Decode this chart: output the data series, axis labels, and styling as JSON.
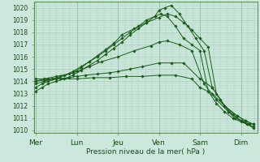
{
  "title": "Pression niveau de la mer( hPa )",
  "ylabel_ticks": [
    1010,
    1011,
    1012,
    1013,
    1014,
    1015,
    1016,
    1017,
    1018,
    1019,
    1020
  ],
  "ylim": [
    1009.8,
    1020.5
  ],
  "xlim": [
    -0.05,
    5.4
  ],
  "day_labels": [
    "Mer",
    "Lun",
    "Jeu",
    "Ven",
    "Sam",
    "Dim"
  ],
  "day_positions": [
    0,
    1,
    2,
    3,
    4,
    5
  ],
  "background_color": "#cce8dc",
  "grid_color": "#a8ccb8",
  "line_color": "#1a5c1a",
  "marker_color": "#1a5c1a",
  "series": [
    {
      "x": [
        0.0,
        0.15,
        0.3,
        0.5,
        0.7,
        0.9,
        1.1,
        1.3,
        1.5,
        1.7,
        1.9,
        2.1,
        2.3,
        2.5,
        2.7,
        2.9,
        3.0,
        3.15,
        3.3,
        3.5,
        3.7,
        3.9,
        4.1,
        4.3,
        4.5,
        4.7,
        4.85,
        5.0,
        5.15,
        5.3
      ],
      "y": [
        1013.2,
        1013.5,
        1013.8,
        1014.0,
        1014.2,
        1014.5,
        1014.9,
        1015.3,
        1015.7,
        1016.2,
        1016.7,
        1017.2,
        1017.8,
        1018.3,
        1018.8,
        1019.3,
        1019.8,
        1020.0,
        1020.2,
        1019.5,
        1018.5,
        1017.5,
        1016.5,
        1013.5,
        1012.5,
        1011.5,
        1011.0,
        1010.8,
        1010.5,
        1010.3
      ]
    },
    {
      "x": [
        0.0,
        0.15,
        0.3,
        0.5,
        0.7,
        0.9,
        1.1,
        1.3,
        1.5,
        1.7,
        1.9,
        2.1,
        2.3,
        2.5,
        2.7,
        2.9,
        3.05,
        3.2,
        3.4,
        3.6,
        3.8,
        4.0,
        4.2,
        4.4,
        4.6,
        4.8,
        5.0,
        5.15,
        5.3
      ],
      "y": [
        1013.5,
        1013.8,
        1014.0,
        1014.2,
        1014.5,
        1014.8,
        1015.2,
        1015.6,
        1016.0,
        1016.5,
        1017.0,
        1017.5,
        1018.0,
        1018.5,
        1019.0,
        1019.3,
        1019.5,
        1019.3,
        1018.5,
        1017.5,
        1017.0,
        1016.5,
        1013.2,
        1012.2,
        1011.5,
        1011.0,
        1010.7,
        1010.5,
        1010.2
      ]
    },
    {
      "x": [
        0.0,
        0.2,
        0.4,
        0.6,
        0.9,
        1.1,
        1.3,
        1.5,
        1.7,
        1.9,
        2.1,
        2.4,
        2.7,
        3.0,
        3.2,
        3.4,
        3.6,
        3.8,
        4.0,
        4.2,
        4.4,
        4.6,
        4.8,
        5.0,
        5.2
      ],
      "y": [
        1013.8,
        1014.0,
        1014.2,
        1014.4,
        1014.7,
        1015.1,
        1015.6,
        1016.1,
        1016.6,
        1017.1,
        1017.8,
        1018.3,
        1018.8,
        1019.2,
        1019.5,
        1019.3,
        1018.8,
        1018.2,
        1017.5,
        1016.8,
        1013.0,
        1012.0,
        1011.3,
        1010.8,
        1010.5
      ]
    },
    {
      "x": [
        0.0,
        0.2,
        0.5,
        0.8,
        1.0,
        1.2,
        1.5,
        1.8,
        2.0,
        2.3,
        2.6,
        3.0,
        3.3,
        3.6,
        4.0,
        4.3,
        4.6,
        4.9,
        5.1,
        5.3
      ],
      "y": [
        1014.0,
        1014.1,
        1014.2,
        1014.3,
        1014.4,
        1014.5,
        1014.6,
        1014.7,
        1014.8,
        1015.0,
        1015.2,
        1015.5,
        1015.5,
        1015.5,
        1014.2,
        1013.5,
        1012.0,
        1011.2,
        1010.8,
        1010.5
      ]
    },
    {
      "x": [
        0.0,
        0.3,
        0.6,
        1.0,
        1.4,
        1.8,
        2.2,
        2.6,
        3.0,
        3.4,
        3.8,
        4.0,
        4.3,
        4.6,
        4.9,
        5.1,
        5.3
      ],
      "y": [
        1014.2,
        1014.2,
        1014.2,
        1014.2,
        1014.3,
        1014.3,
        1014.4,
        1014.4,
        1014.5,
        1014.5,
        1014.2,
        1013.5,
        1013.0,
        1012.0,
        1011.2,
        1010.8,
        1010.5
      ]
    },
    {
      "x": [
        0.0,
        0.2,
        0.5,
        0.8,
        1.0,
        1.3,
        1.6,
        2.0,
        2.4,
        2.8,
        3.0,
        3.2,
        3.5,
        3.8,
        4.1,
        4.4,
        4.7,
        5.0,
        5.2
      ],
      "y": [
        1014.0,
        1014.2,
        1014.4,
        1014.6,
        1014.8,
        1015.2,
        1015.6,
        1016.0,
        1016.5,
        1016.9,
        1017.2,
        1017.3,
        1017.0,
        1016.5,
        1013.8,
        1012.5,
        1011.5,
        1010.8,
        1010.5
      ]
    }
  ]
}
